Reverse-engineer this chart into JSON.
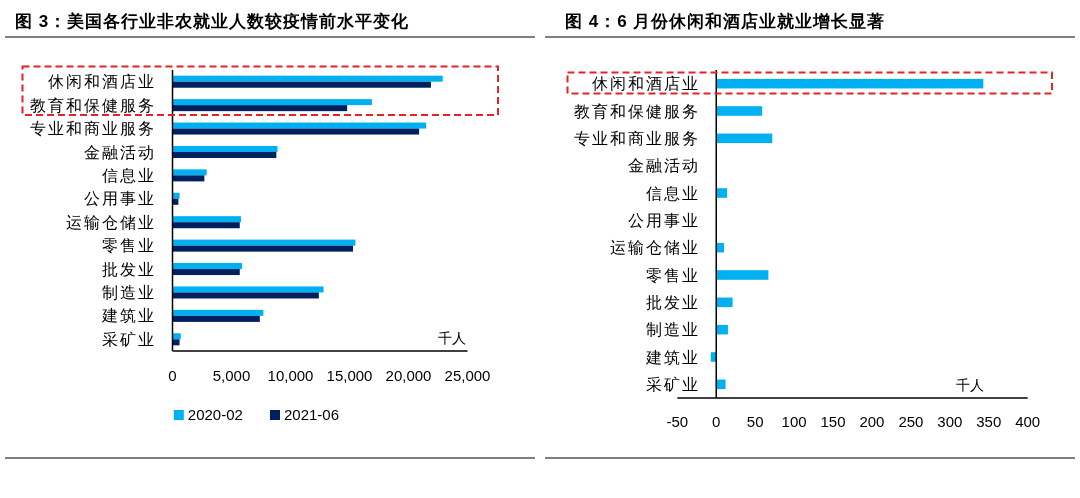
{
  "chart_data": [
    {
      "type": "bar",
      "orientation": "horizontal",
      "title": "图 3：美国各行业非农就业人数较疫情前水平变化",
      "xlabel": "千人",
      "legend": "bottom",
      "categories": [
        "休闲和酒店业",
        "教育和保健服务",
        "专业和商业服务",
        "金融活动",
        "信息业",
        "公用事业",
        "运输仓储业",
        "零售业",
        "批发业",
        "制造业",
        "建筑业",
        "采矿业"
      ],
      "series": [
        {
          "name": "2020-02",
          "color": "#00b0f0",
          "values": [
            22900,
            16900,
            21500,
            8900,
            2900,
            600,
            5800,
            15500,
            5900,
            12800,
            7700,
            700
          ]
        },
        {
          "name": "2021-06",
          "color": "#002060",
          "values": [
            21900,
            14800,
            20900,
            8800,
            2700,
            500,
            5700,
            15300,
            5700,
            12400,
            7400,
            600
          ]
        }
      ],
      "xlim": [
        0,
        25000
      ],
      "xticks": [
        0,
        {
          "value": 5000,
          "label": "5,000"
        },
        {
          "value": 10000,
          "label": "10,000"
        },
        {
          "value": 15000,
          "label": "15,000"
        },
        {
          "value": 20000,
          "label": "20,000"
        },
        {
          "value": 25000,
          "label": "25,000"
        }
      ]
    },
    {
      "type": "bar",
      "orientation": "horizontal",
      "title": "图 4：6 月份休闲和酒店业就业增长显著",
      "xlabel": "千人",
      "categories": [
        "休闲和酒店业",
        "教育和保健服务",
        "专业和商业服务",
        "金融活动",
        "信息业",
        "公用事业",
        "运输仓储业",
        "零售业",
        "批发业",
        "制造业",
        "建筑业",
        "采矿业"
      ],
      "series": [
        {
          "color": "#00b0f0",
          "values": [
            343,
            59,
            72,
            0,
            14,
            0,
            10,
            67,
            21,
            15,
            -7,
            12
          ]
        }
      ],
      "xlim": [
        -50,
        400
      ],
      "xticks": [
        -50,
        0,
        50,
        100,
        150,
        200,
        250,
        300,
        350,
        400
      ]
    }
  ]
}
